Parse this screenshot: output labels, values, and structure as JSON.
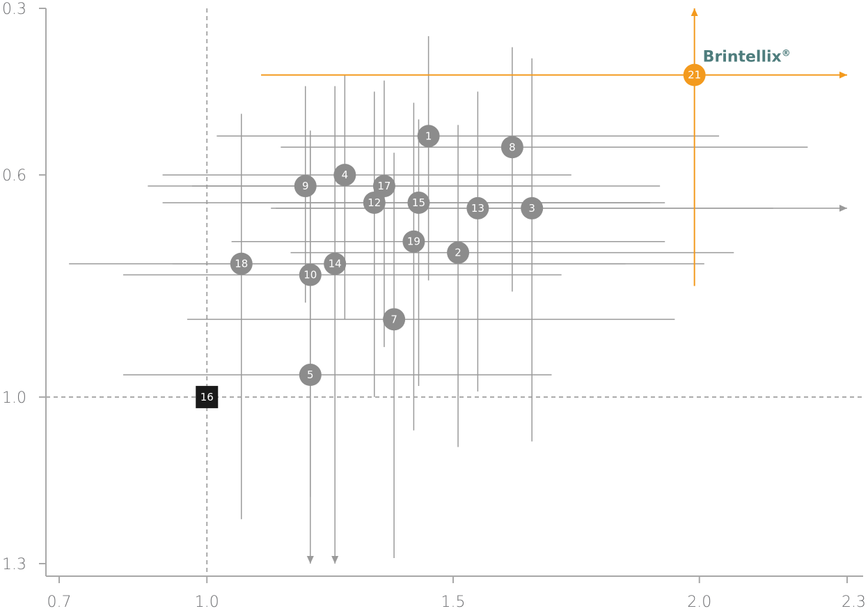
{
  "chart_data": {
    "type": "scatter",
    "title": "",
    "xlabel": "",
    "ylabel": "",
    "xlim": [
      0.7,
      2.3
    ],
    "ylim": [
      0.3,
      1.3
    ],
    "y_inverted": true,
    "x_ticks": [
      "0.7",
      "1.0",
      "1.5",
      "2.0",
      "2.3"
    ],
    "y_ticks": [
      "0.3",
      "0.6",
      "1.0",
      "1.3"
    ],
    "reference_lines": {
      "x": 1.0,
      "y": 1.0
    },
    "reference_point": {
      "label": "16",
      "x": 1.0,
      "y": 1.0
    },
    "highlight": {
      "label": "21",
      "name": "Brintellix",
      "mark": "®",
      "x": 1.99,
      "y": 0.42,
      "x_low": 1.11,
      "x_high": 2.3,
      "y_low": 0.3,
      "y_high": 0.8,
      "arrow_right": true,
      "arrow_up": true
    },
    "points": [
      {
        "label": "1",
        "x": 1.45,
        "y": 0.53,
        "x_low": 1.02,
        "x_high": 2.04,
        "y_low": 0.35,
        "y_high": 0.79
      },
      {
        "label": "2",
        "x": 1.51,
        "y": 0.74,
        "x_low": 1.17,
        "x_high": 2.07,
        "y_low": 0.51,
        "y_high": 1.09
      },
      {
        "label": "3",
        "x": 1.66,
        "y": 0.66,
        "x_low": 1.14,
        "x_high": 2.3,
        "y_low": 0.39,
        "y_high": 1.08,
        "arrow_right": true
      },
      {
        "label": "4",
        "x": 1.28,
        "y": 0.6,
        "x_low": 0.91,
        "x_high": 1.74,
        "y_low": 0.42,
        "y_high": 0.86
      },
      {
        "label": "5",
        "x": 1.21,
        "y": 0.96,
        "x_low": 0.83,
        "x_high": 1.7,
        "y_low": 0.55,
        "y_high": 1.3,
        "arrow_down": true
      },
      {
        "label": "7",
        "x": 1.38,
        "y": 0.86,
        "x_low": 0.96,
        "x_high": 1.95,
        "y_low": 0.56,
        "y_high": 1.29
      },
      {
        "label": "8",
        "x": 1.62,
        "y": 0.55,
        "x_low": 1.15,
        "x_high": 2.22,
        "y_low": 0.37,
        "y_high": 0.81
      },
      {
        "label": "9",
        "x": 1.2,
        "y": 0.62,
        "x_low": 0.88,
        "x_high": 1.66,
        "y_low": 0.44,
        "y_high": 0.83
      },
      {
        "label": "10",
        "x": 1.21,
        "y": 0.78,
        "x_low": 0.83,
        "x_high": 1.72,
        "y_low": 0.52,
        "y_high": 1.18
      },
      {
        "label": "12",
        "x": 1.34,
        "y": 0.65,
        "x_low": 0.91,
        "x_high": 1.9,
        "y_low": 0.45,
        "y_high": 1.0
      },
      {
        "label": "13",
        "x": 1.55,
        "y": 0.66,
        "x_low": 1.13,
        "x_high": 2.15,
        "y_low": 0.45,
        "y_high": 0.99
      },
      {
        "label": "14",
        "x": 1.26,
        "y": 0.76,
        "x_low": 0.93,
        "x_high": 1.85,
        "y_low": 0.44,
        "y_high": 1.3,
        "arrow_down": true
      },
      {
        "label": "15",
        "x": 1.43,
        "y": 0.65,
        "x_low": 1.07,
        "x_high": 1.93,
        "y_low": 0.5,
        "y_high": 0.98
      },
      {
        "label": "17",
        "x": 1.36,
        "y": 0.62,
        "x_low": 0.97,
        "x_high": 1.92,
        "y_low": 0.43,
        "y_high": 0.91
      },
      {
        "label": "18",
        "x": 1.07,
        "y": 0.76,
        "x_low": 0.72,
        "x_high": 2.01,
        "y_low": 0.49,
        "y_high": 1.22
      },
      {
        "label": "19",
        "x": 1.42,
        "y": 0.72,
        "x_low": 1.05,
        "x_high": 1.93,
        "y_low": 0.47,
        "y_high": 1.06
      }
    ],
    "colors": {
      "point": "#8c8c8c",
      "whisker": "#9a9a9a",
      "highlight": "#f39a1e",
      "reference": "#1a1a1a",
      "brand_text": "#4e7d7d",
      "axis": "#a8a8a8",
      "tick_text": "#6d6e71"
    }
  }
}
